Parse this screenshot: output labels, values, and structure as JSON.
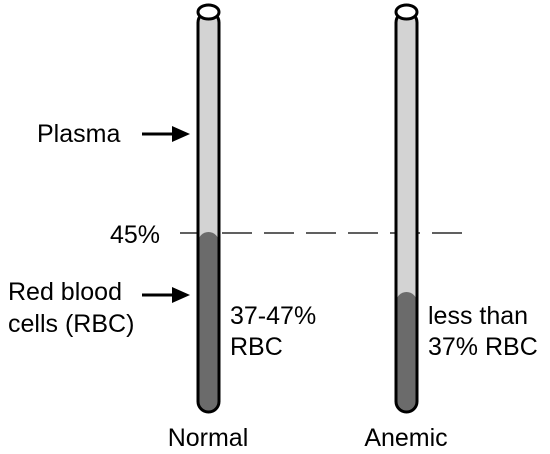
{
  "labels": {
    "plasma": "Plasma",
    "level": "45%",
    "rbc_line1": "Red blood",
    "rbc_line2": "cells (RBC)",
    "normal_rbc_line1": "37-47%",
    "normal_rbc_line2": "RBC",
    "anemic_rbc_line1": "less than",
    "anemic_rbc_line2": "37% RBC"
  },
  "tubes": [
    {
      "name": "Normal",
      "rbc_fraction": 0.45
    },
    {
      "name": "Anemic",
      "rbc_fraction": 0.3
    }
  ],
  "colors": {
    "plasma": "#d3d3d3",
    "rbc": "#6b6b6b",
    "outline": "#000000",
    "tube_top": "#ffffff"
  }
}
